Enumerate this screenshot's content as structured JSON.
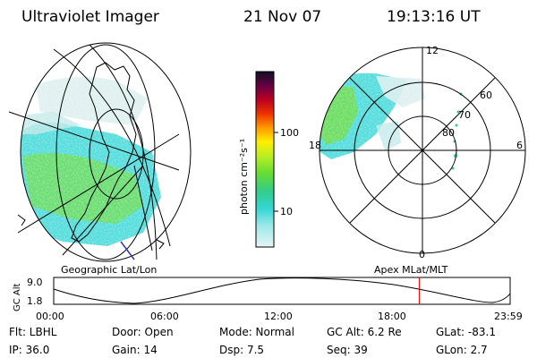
{
  "header": {
    "instrument": "Ultraviolet Imager",
    "date": "21 Nov 07",
    "time": "19:13:16 UT"
  },
  "left_panel": {
    "caption": "Geographic Lat/Lon"
  },
  "right_panel": {
    "caption": "Apex MLat/MLT",
    "mlt_labels": {
      "top": "12",
      "left": "18",
      "right": "6",
      "bottom": "0"
    },
    "lat_labels": [
      "60",
      "70",
      "80"
    ]
  },
  "colorbar": {
    "unit_label": "photon cm⁻²s⁻¹",
    "ticks": [
      "100",
      "10"
    ],
    "scale": "log"
  },
  "timeline": {
    "ylabel": "GC Alt",
    "y_ticks": [
      "9.0",
      "1.8"
    ],
    "x_ticks": [
      "00:00",
      "06:00",
      "12:00",
      "18:00",
      "23:59"
    ],
    "current_time_fraction": 0.8009,
    "marker_color": "#ff0000"
  },
  "info": {
    "filter": "Flt: LBHL",
    "ip": "IP: 36.0",
    "door": "Door: Open",
    "gain": "Gain: 14",
    "mode": "Mode: Normal",
    "dsp": "Dsp:    7.5",
    "gc_alt": "GC Alt: 6.2 Re",
    "seq": "Seq: 39",
    "glat": "GLat:  -83.1",
    "glon": "GLon:    2.7"
  }
}
